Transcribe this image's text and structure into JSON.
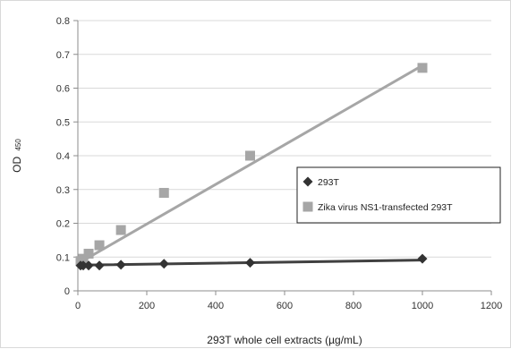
{
  "chart_data": {
    "type": "scatter",
    "title": "",
    "xlabel": "293T whole cell extracts (µg/mL)",
    "ylabel_main": "OD",
    "ylabel_sub": "450",
    "xlim": [
      0,
      1200
    ],
    "ylim": [
      0,
      0.8
    ],
    "x_ticks": [
      0,
      200,
      400,
      600,
      800,
      1000,
      1200
    ],
    "y_ticks": [
      0,
      0.1,
      0.2,
      0.3,
      0.4,
      0.5,
      0.6,
      0.7,
      0.8
    ],
    "grid": "horizontal",
    "legend_position": "right",
    "series": [
      {
        "name": "293T",
        "marker": "diamond",
        "color": "#333333",
        "x": [
          7.8,
          15.6,
          31.25,
          62.5,
          125,
          250,
          500,
          1000
        ],
        "y": [
          0.075,
          0.075,
          0.075,
          0.075,
          0.077,
          0.08,
          0.083,
          0.095
        ],
        "trendline": {
          "x": [
            7.8,
            1000
          ],
          "y": [
            0.076,
            0.091
          ],
          "color": "#404040"
        }
      },
      {
        "name": "Zika virus NS1-transfected 293T",
        "marker": "square",
        "color": "#a6a6a6",
        "x": [
          7.8,
          15.6,
          31.25,
          62.5,
          125,
          250,
          500,
          1000
        ],
        "y": [
          0.088,
          0.095,
          0.11,
          0.135,
          0.18,
          0.29,
          0.4,
          0.66
        ],
        "trendline": {
          "x": [
            7.8,
            1000
          ],
          "y": [
            0.085,
            0.667
          ],
          "color": "#a6a6a6"
        }
      }
    ]
  }
}
